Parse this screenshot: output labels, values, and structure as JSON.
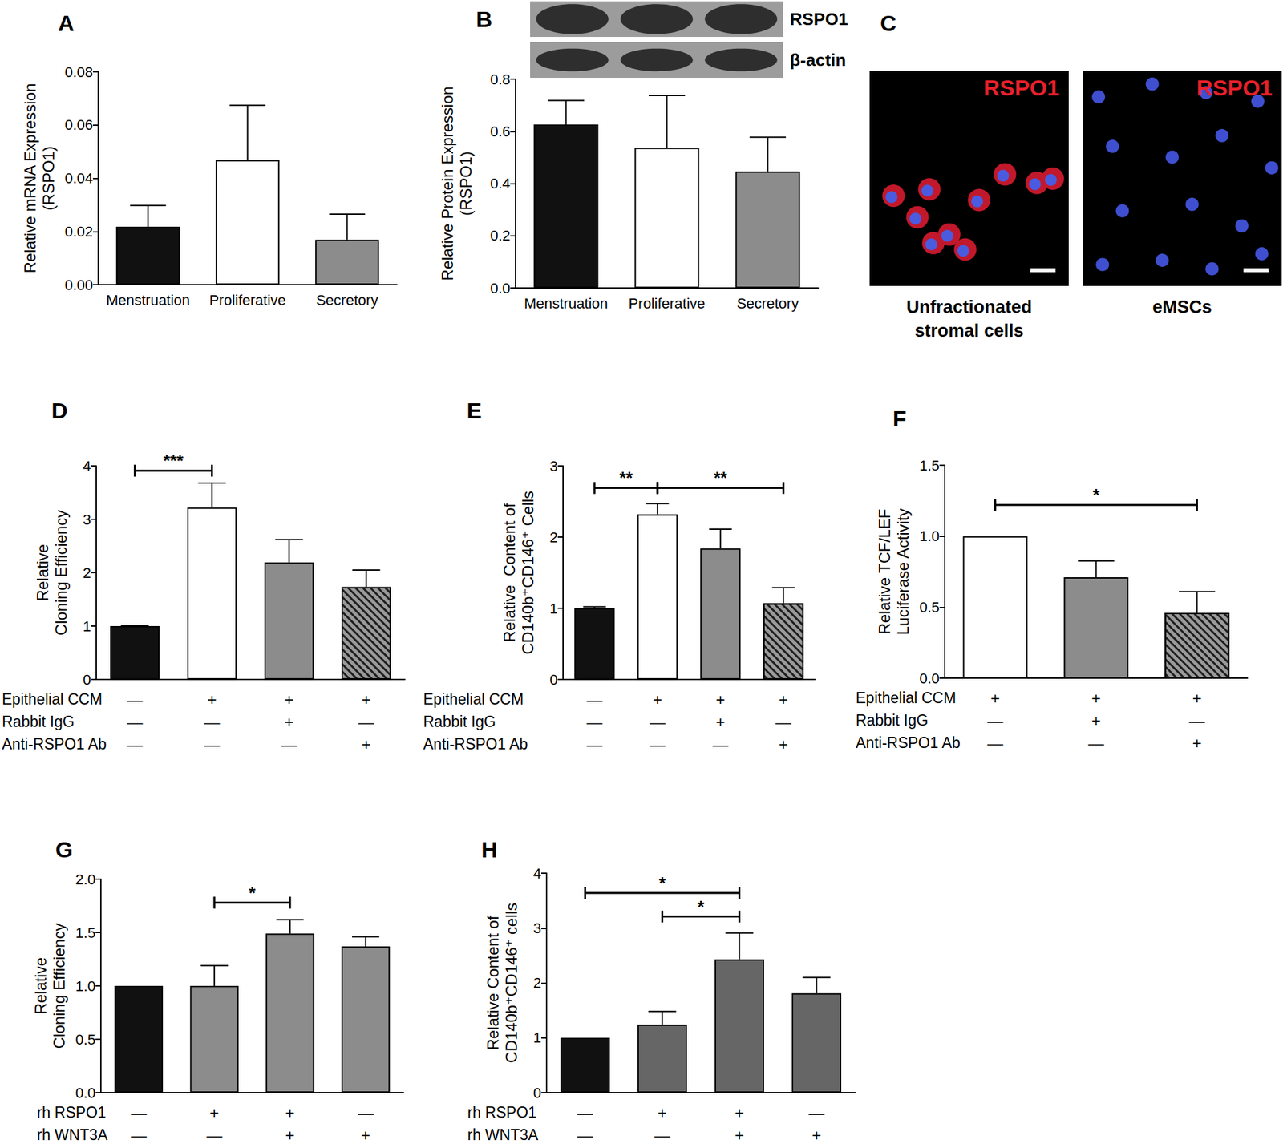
{
  "chart_data": [
    {
      "type": "bar",
      "title": "A",
      "ylabel": [
        "Relative mRNA Expression",
        "(RSPO1)"
      ],
      "categories": [
        "Menstruation",
        "Proliferative",
        "Secretory"
      ],
      "values": [
        0.0218,
        0.0468,
        0.0169
      ],
      "errors": [
        0.008,
        0.0206,
        0.0096
      ],
      "colors": [
        "#111111",
        "#ffffff",
        "#8c8c8c"
      ],
      "ylim": [
        0,
        0.08
      ],
      "yticks": [
        {
          "value": 0,
          "label": "0.00"
        },
        {
          "value": 0.02,
          "label": "0.02"
        },
        {
          "value": 0.04,
          "label": "0.04"
        },
        {
          "value": 0.06,
          "label": "0.06"
        },
        {
          "value": 0.08,
          "label": "0.08"
        }
      ],
      "grid": false
    },
    {
      "type": "bar",
      "title": "B",
      "ylabel": [
        "Relative Protein Expression",
        "(RSPO1)"
      ],
      "blot": [
        "RSPO1",
        "β-actin"
      ],
      "categories": [
        "Menstruation",
        "Proliferative",
        "Secretory"
      ],
      "values": [
        0.626,
        0.537,
        0.446
      ],
      "errors": [
        0.092,
        0.2,
        0.131
      ],
      "colors": [
        "#111111",
        "#ffffff",
        "#8c8c8c"
      ],
      "ylim": [
        0,
        0.8
      ],
      "yticks": [
        {
          "value": 0,
          "label": "0.0"
        },
        {
          "value": 0.2,
          "label": "0.2"
        },
        {
          "value": 0.4,
          "label": "0.4"
        },
        {
          "value": 0.6,
          "label": "0.6"
        },
        {
          "value": 0.8,
          "label": "0.8"
        }
      ],
      "grid": false
    },
    {
      "type": "image",
      "title": "C",
      "panels": [
        {
          "label": "RSPO1",
          "caption": [
            "Unfractionated",
            "stromal cells"
          ]
        },
        {
          "label": "RSPO1",
          "caption": [
            "eMSCs"
          ]
        }
      ]
    },
    {
      "type": "bar",
      "title": "D",
      "ylabel": [
        "Relative",
        "Cloning Efficiency"
      ],
      "conditions": [
        {
          "label": "Epithelial CCM",
          "marks": [
            "—",
            "+",
            "+",
            "+"
          ]
        },
        {
          "label": "Rabbit IgG",
          "marks": [
            "—",
            "—",
            "+",
            "—"
          ]
        },
        {
          "label": "Anti-RSPO1 Ab",
          "marks": [
            "—",
            "—",
            "—",
            "+"
          ]
        }
      ],
      "values": [
        1.0,
        3.22,
        2.19,
        1.73
      ],
      "errors": [
        0.01,
        0.46,
        0.43,
        0.32
      ],
      "colors": [
        "#111111",
        "#ffffff",
        "#8c8c8c",
        "#7a7a7a"
      ],
      "ylim": [
        0,
        4
      ],
      "yticks": [
        0,
        1,
        2,
        3,
        4
      ],
      "annotations": [
        {
          "from": 0,
          "to": 1,
          "y": 3.91,
          "text": "***"
        }
      ],
      "grid": false
    },
    {
      "type": "bar",
      "title": "E",
      "ylabel": [
        "Relative  Content of",
        "CD140b⁺CD146⁺ Cells"
      ],
      "conditions": [
        {
          "label": "Epithelial CCM",
          "marks": [
            "—",
            "+",
            "+",
            "+"
          ]
        },
        {
          "label": "Rabbit IgG",
          "marks": [
            "—",
            "—",
            "+",
            "—"
          ]
        },
        {
          "label": "Anti-RSPO1 Ab",
          "marks": [
            "—",
            "—",
            "—",
            "+"
          ]
        }
      ],
      "values": [
        1.0,
        2.32,
        1.84,
        1.07
      ],
      "errors": [
        0.02,
        0.15,
        0.27,
        0.22
      ],
      "colors": [
        "#111111",
        "#ffffff",
        "#8c8c8c",
        "#7a7a7a"
      ],
      "ylim": [
        0,
        3
      ],
      "yticks": [
        0,
        1,
        2,
        3
      ],
      "annotations": [
        {
          "from": 0,
          "to": 1,
          "y": 2.69,
          "text": "**"
        },
        {
          "from": 1.15,
          "to": 3,
          "y": 2.69,
          "text": "**"
        }
      ],
      "grid": false
    },
    {
      "type": "bar",
      "title": "F",
      "ylabel": [
        "Relative TCF/LEF",
        "Luciferase Activity"
      ],
      "conditions": [
        {
          "label": "Epithelial CCM",
          "marks": [
            "+",
            "+",
            "+"
          ]
        },
        {
          "label": "Rabbit IgG",
          "marks": [
            "—",
            "+",
            "—"
          ]
        },
        {
          "label": "Anti-RSPO1 Ab",
          "marks": [
            "—",
            "—",
            "+"
          ]
        }
      ],
      "values": [
        1.0,
        0.71,
        0.46
      ],
      "errors": [
        0,
        0.115,
        0.15
      ],
      "colors": [
        "#ffffff",
        "#8c8c8c",
        "#7a7a7a"
      ],
      "ylim": [
        0,
        1.5
      ],
      "yticks": [
        {
          "value": 0,
          "label": "0.0"
        },
        {
          "value": 0.5,
          "label": "0.5"
        },
        {
          "value": 1,
          "label": "1.0"
        },
        {
          "value": 1.5,
          "label": "1.5"
        }
      ],
      "annotations": [
        {
          "from": 0,
          "to": 2,
          "y": 1.22,
          "text": "*"
        }
      ],
      "grid": false
    },
    {
      "type": "bar",
      "title": "G",
      "ylabel": [
        "Relative",
        "Cloning Efficiency"
      ],
      "conditions": [
        {
          "label": "rh RSPO1",
          "marks": [
            "—",
            "+",
            "+",
            "—"
          ]
        },
        {
          "label": "rh WNT3A",
          "marks": [
            "—",
            "—",
            "+",
            "+"
          ]
        }
      ],
      "values": [
        1.0,
        1.0,
        1.49,
        1.37
      ],
      "errors": [
        0,
        0.19,
        0.13,
        0.09
      ],
      "colors": [
        "#111111",
        "#8c8c8c",
        "#8c8c8c",
        "#8c8c8c"
      ],
      "ylim": [
        0,
        2
      ],
      "yticks": [
        {
          "value": 0,
          "label": "0.0"
        },
        {
          "value": 0.5,
          "label": "0.5"
        },
        {
          "value": 1,
          "label": "1.0"
        },
        {
          "value": 1.5,
          "label": "1.5"
        },
        {
          "value": 2,
          "label": "2.0"
        }
      ],
      "annotations": [
        {
          "from": 1,
          "to": 2,
          "y": 1.78,
          "text": "*"
        }
      ],
      "grid": false
    },
    {
      "type": "bar",
      "title": "H",
      "ylabel": [
        "Relative Content of",
        "CD140b⁺CD146⁺ cells"
      ],
      "conditions": [
        {
          "label": "rh RSPO1",
          "marks": [
            "—",
            "+",
            "+",
            "—"
          ]
        },
        {
          "label": "rh WNT3A",
          "marks": [
            "—",
            "—",
            "+",
            "+"
          ]
        }
      ],
      "values": [
        1.0,
        1.24,
        2.43,
        1.81
      ],
      "errors": [
        0,
        0.24,
        0.48,
        0.29
      ],
      "colors": [
        "#111111",
        "#666666",
        "#666666",
        "#666666"
      ],
      "ylim": [
        0,
        4
      ],
      "yticks": [
        0,
        1,
        2,
        3,
        4
      ],
      "annotations": [
        {
          "from": 0,
          "to": 2,
          "y": 3.64,
          "text": "*"
        },
        {
          "from": 1,
          "to": 2,
          "y": 3.21,
          "text": "*"
        }
      ],
      "grid": false
    }
  ]
}
